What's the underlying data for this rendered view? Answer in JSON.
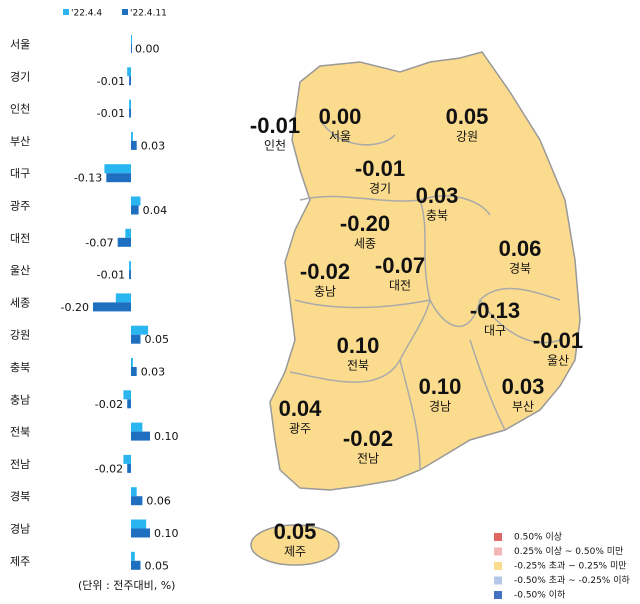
{
  "chart_data": {
    "type": "bar",
    "orientation": "horizontal",
    "categories": [
      "서울",
      "경기",
      "인천",
      "부산",
      "대구",
      "광주",
      "대전",
      "울산",
      "세종",
      "강원",
      "충북",
      "충남",
      "전북",
      "전남",
      "경북",
      "경남",
      "제주"
    ],
    "series": [
      {
        "name": "'22.4.4",
        "color": "#29b6f0",
        "values": [
          0.0,
          -0.02,
          -0.01,
          0.01,
          -0.14,
          0.05,
          -0.03,
          -0.01,
          -0.08,
          0.09,
          0.01,
          -0.04,
          0.06,
          -0.04,
          0.03,
          0.08,
          0.02
        ]
      },
      {
        "name": "'22.4.11",
        "color": "#1f6fc0",
        "values": [
          0.0,
          -0.01,
          -0.01,
          0.03,
          -0.13,
          0.04,
          -0.07,
          -0.01,
          -0.2,
          0.05,
          0.03,
          -0.02,
          0.1,
          -0.02,
          0.06,
          0.1,
          0.05
        ],
        "value_labels": [
          "0.00",
          "-0.01",
          "-0.01",
          "0.03",
          "-0.13",
          "0.04",
          "-0.07",
          "-0.01",
          "-0.20",
          "0.05",
          "0.03",
          "-0.02",
          "0.10",
          "-0.02",
          "0.06",
          "0.10",
          "0.05"
        ]
      }
    ],
    "note": "(단위 : 전주대비, %)",
    "map_legend": [
      {
        "label": "0.50% 이상",
        "color": "#e06666"
      },
      {
        "label": "0.25% 이상 ~ 0.50% 미만",
        "color": "#f4b6b6"
      },
      {
        "label": "-0.25% 초과 ~ 0.25% 미만",
        "color": "#fbdc8e"
      },
      {
        "label": "-0.50% 초과 ~ -0.25% 이하",
        "color": "#b4c7e7"
      },
      {
        "label": "-0.50% 이하",
        "color": "#4472c4"
      }
    ]
  }
}
